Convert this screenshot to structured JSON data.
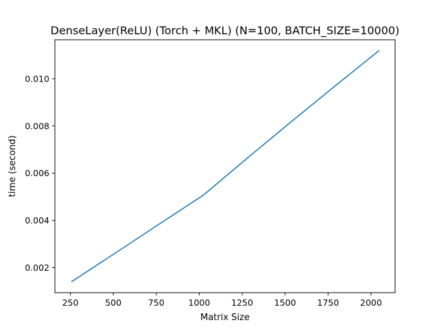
{
  "chart_data": {
    "type": "line",
    "title": "DenseLayer(ReLU) (Torch + MKL) (N=100, BATCH_SIZE=10000)",
    "xlabel": "Matrix Size",
    "ylabel": "time (second)",
    "xlim": [
      160,
      2140
    ],
    "ylim": [
      0.00094,
      0.01165
    ],
    "xticks": [
      250,
      500,
      750,
      1000,
      1250,
      1500,
      1750,
      2000
    ],
    "xtick_labels": [
      "250",
      "500",
      "750",
      "1000",
      "1250",
      "1500",
      "1750",
      "2000"
    ],
    "yticks": [
      0.002,
      0.004,
      0.006,
      0.008,
      0.01
    ],
    "ytick_labels": [
      "0.002",
      "0.004",
      "0.006",
      "0.008",
      "0.010"
    ],
    "grid": false,
    "series": [
      {
        "color": "#1f77b4",
        "x": [
          256,
          512,
          768,
          1024,
          1280,
          1536,
          1792,
          2048
        ],
        "y": [
          0.0014,
          0.00262,
          0.00385,
          0.00507,
          0.00664,
          0.00818,
          0.0097,
          0.0112
        ]
      }
    ]
  }
}
